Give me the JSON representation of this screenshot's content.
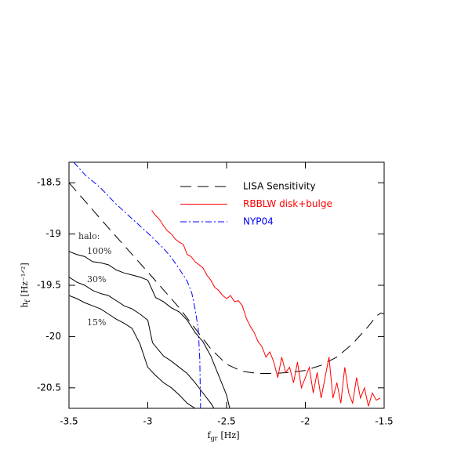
{
  "chart_data": {
    "type": "line",
    "x_label": {
      "main": "f",
      "sub": "gr",
      "unit": "[Hz]"
    },
    "y_label": {
      "main": "h",
      "sub": "f",
      "unit": "[Hz⁻¹ᐟ²]"
    },
    "xlim": [
      -3.5,
      -1.5
    ],
    "xticks": [
      -3.5,
      -3,
      -2.5,
      -2,
      -1.5
    ],
    "ylim": [
      -20.7,
      -18.3
    ],
    "yticks": [
      -18.5,
      -19,
      -19.5,
      -20,
      -20.5
    ],
    "legend": "upper-right",
    "series": [
      {
        "name": "LISA Sensitivity",
        "color": "#000000",
        "style": "dashed",
        "x": [
          -3.5,
          -3.25,
          -3.0,
          -2.8,
          -2.7,
          -2.6,
          -2.5,
          -2.4,
          -2.3,
          -2.2,
          -2.1,
          -2.0,
          -1.9,
          -1.8,
          -1.7,
          -1.6,
          -1.55,
          -1.52,
          -1.5
        ],
        "values": [
          -18.5,
          -18.94,
          -19.37,
          -19.72,
          -19.92,
          -20.12,
          -20.27,
          -20.34,
          -20.36,
          -20.36,
          -20.35,
          -20.33,
          -20.28,
          -20.2,
          -20.07,
          -19.9,
          -19.8,
          -19.77,
          -19.78
        ]
      },
      {
        "name": "RBBLW disk+bulge",
        "color": "#ff0000",
        "style": "solid",
        "x": [
          -2.975,
          -2.95,
          -2.925,
          -2.9,
          -2.875,
          -2.85,
          -2.825,
          -2.8,
          -2.775,
          -2.75,
          -2.725,
          -2.7,
          -2.675,
          -2.65,
          -2.625,
          -2.6,
          -2.575,
          -2.55,
          -2.525,
          -2.5,
          -2.475,
          -2.45,
          -2.425,
          -2.4,
          -2.375,
          -2.35,
          -2.325,
          -2.3,
          -2.275,
          -2.25,
          -2.225,
          -2.2,
          -2.175,
          -2.15,
          -2.125,
          -2.1,
          -2.075,
          -2.05,
          -2.025,
          -2.0,
          -1.975,
          -1.95,
          -1.925,
          -1.9,
          -1.875,
          -1.85,
          -1.825,
          -1.8,
          -1.775,
          -1.75,
          -1.725,
          -1.7,
          -1.675,
          -1.65,
          -1.625,
          -1.6,
          -1.575,
          -1.55,
          -1.525
        ],
        "values": [
          -18.77,
          -18.82,
          -18.86,
          -18.92,
          -18.97,
          -19.0,
          -19.05,
          -19.08,
          -19.1,
          -19.2,
          -19.22,
          -19.27,
          -19.3,
          -19.33,
          -19.4,
          -19.45,
          -19.52,
          -19.55,
          -19.6,
          -19.63,
          -19.6,
          -19.66,
          -19.65,
          -19.7,
          -19.82,
          -19.9,
          -19.96,
          -20.05,
          -20.1,
          -20.2,
          -20.15,
          -20.25,
          -20.4,
          -20.2,
          -20.35,
          -20.3,
          -20.45,
          -20.25,
          -20.5,
          -20.4,
          -20.3,
          -20.55,
          -20.35,
          -20.6,
          -20.4,
          -20.2,
          -20.6,
          -20.45,
          -20.65,
          -20.3,
          -20.55,
          -20.65,
          -20.4,
          -20.6,
          -20.5,
          -20.68,
          -20.55,
          -20.62,
          -20.6
        ]
      },
      {
        "name": "NYP04",
        "color": "#0000ff",
        "style": "dash-dot",
        "x": [
          -3.47,
          -3.4,
          -3.3,
          -3.2,
          -3.1,
          -3.0,
          -2.9,
          -2.85,
          -2.8,
          -2.75,
          -2.72,
          -2.7,
          -2.68,
          -2.67,
          -2.665
        ],
        "values": [
          -18.3,
          -18.42,
          -18.55,
          -18.71,
          -18.85,
          -18.99,
          -19.14,
          -19.23,
          -19.34,
          -19.46,
          -19.58,
          -19.73,
          -19.92,
          -20.22,
          -20.7
        ]
      }
    ],
    "halo_curves": {
      "title": "halo:",
      "color": "#000000",
      "series": [
        {
          "name": "100%",
          "x": [
            -3.5,
            -3.45,
            -3.4,
            -3.35,
            -3.3,
            -3.25,
            -3.2,
            -3.15,
            -3.1,
            -3.05,
            -3.0,
            -2.95,
            -2.9,
            -2.85,
            -2.8,
            -2.75,
            -2.7,
            -2.65,
            -2.6,
            -2.55,
            -2.5,
            -2.48
          ],
          "values": [
            -19.17,
            -19.2,
            -19.22,
            -19.27,
            -19.28,
            -19.3,
            -19.35,
            -19.38,
            -19.4,
            -19.42,
            -19.45,
            -19.62,
            -19.66,
            -19.72,
            -19.76,
            -19.84,
            -19.96,
            -20.05,
            -20.19,
            -20.38,
            -20.57,
            -20.7
          ]
        },
        {
          "name": "30%",
          "x": [
            -3.5,
            -3.45,
            -3.4,
            -3.35,
            -3.3,
            -3.25,
            -3.2,
            -3.15,
            -3.1,
            -3.05,
            -3.0,
            -2.97,
            -2.9,
            -2.85,
            -2.8,
            -2.75,
            -2.7,
            -2.65,
            -2.6,
            -2.58
          ],
          "values": [
            -19.42,
            -19.47,
            -19.5,
            -19.55,
            -19.58,
            -19.6,
            -19.65,
            -19.7,
            -19.73,
            -19.78,
            -19.84,
            -20.06,
            -20.19,
            -20.24,
            -20.3,
            -20.36,
            -20.45,
            -20.55,
            -20.65,
            -20.7
          ]
        },
        {
          "name": "15%",
          "x": [
            -3.5,
            -3.45,
            -3.4,
            -3.35,
            -3.3,
            -3.25,
            -3.2,
            -3.15,
            -3.1,
            -3.05,
            -3.0,
            -2.95,
            -2.9,
            -2.85,
            -2.8,
            -2.75,
            -2.7
          ],
          "values": [
            -19.6,
            -19.63,
            -19.67,
            -19.7,
            -19.73,
            -19.78,
            -19.83,
            -19.87,
            -19.92,
            -20.07,
            -20.3,
            -20.38,
            -20.45,
            -20.5,
            -20.57,
            -20.65,
            -20.7
          ]
        }
      ]
    }
  }
}
